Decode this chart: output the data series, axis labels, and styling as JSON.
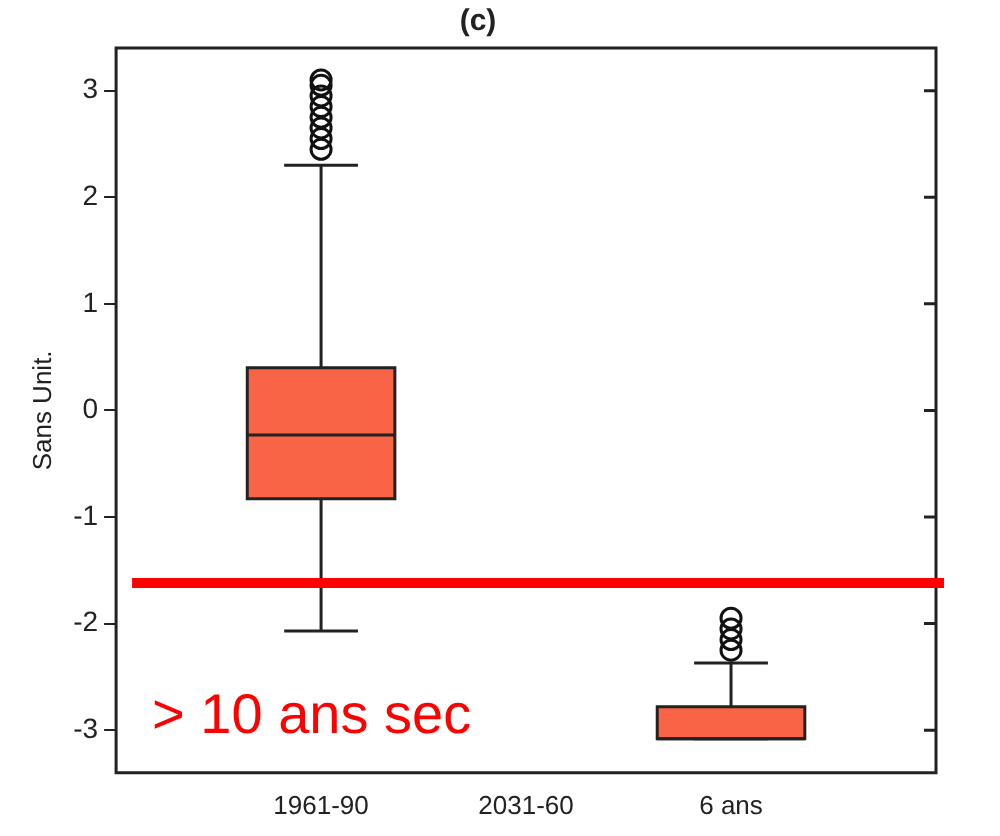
{
  "chart_data": {
    "type": "box",
    "title": "(c)",
    "ylabel": "Sans Unit.",
    "categories": [
      "1961-90",
      "2031-60",
      "6 ans"
    ],
    "color": "#f96446",
    "boxes": [
      {
        "low": -2.07,
        "q1": -0.83,
        "median": -0.23,
        "q3": 0.4,
        "high": 2.3,
        "outliers": [
          2.45,
          2.55,
          2.65,
          2.75,
          2.85,
          2.95,
          3.05,
          3.1
        ]
      },
      null,
      {
        "low": -3.08,
        "q1": -3.08,
        "median": -3.08,
        "q3": -2.78,
        "high": -2.37,
        "outliers": [
          -2.25,
          -2.15,
          -2.05,
          -1.95
        ]
      }
    ],
    "ylim": [
      -3.4,
      3.4
    ],
    "yticks": [
      -3,
      -2,
      -1,
      0,
      1,
      2,
      3
    ],
    "grid": false,
    "legend": false,
    "ref_lines": [
      {
        "axis": "y",
        "value": -1.62,
        "label": "> 10 ans sec",
        "color": "#ff0000"
      }
    ]
  }
}
